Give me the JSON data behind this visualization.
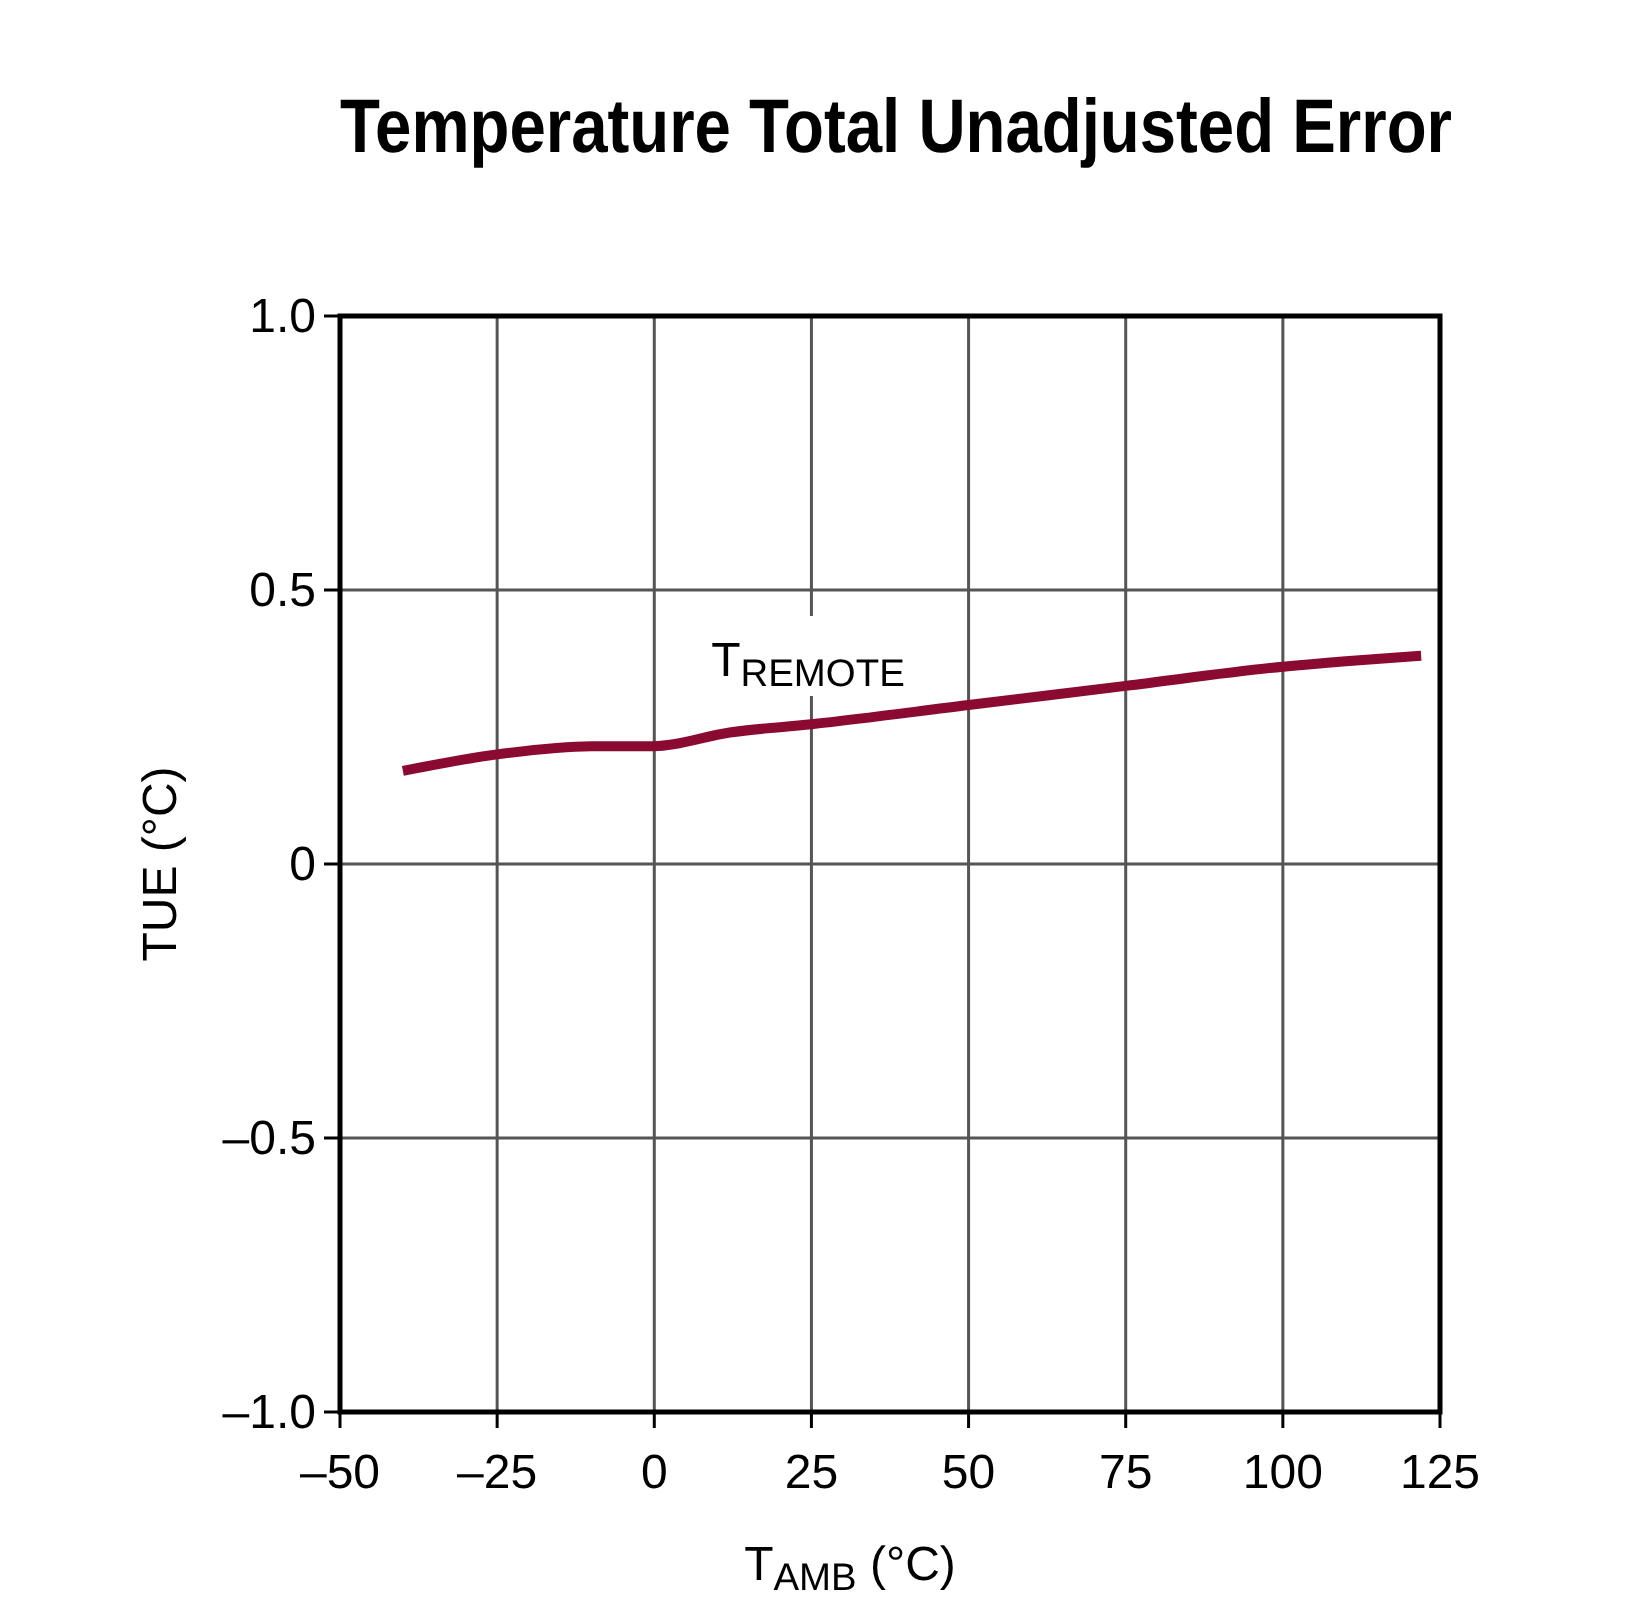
{
  "chart_data": {
    "type": "line",
    "title": "Temperature Total Unadjusted Error",
    "xlabel": "T$_{AMB}$ (°C)",
    "ylabel": "TUE (°C)",
    "series": [
      {
        "color": "#8b0a32",
        "x": [
          -40,
          -25,
          -10,
          0,
          12,
          25,
          50,
          75,
          100,
          110,
          122
        ],
        "values": [
          0.17,
          0.2,
          0.215,
          0.215,
          0.24,
          0.255,
          0.29,
          0.325,
          0.36,
          0.37,
          0.38
        ]
      }
    ],
    "annotations": [
      "T$_{REMOTE}$"
    ],
    "xlim": [
      -50,
      125
    ],
    "ylim": [
      -1,
      1
    ],
    "xticks": [
      {
        "value": -50,
        "label": "–50"
      },
      {
        "value": -25,
        "label": "–25"
      },
      0,
      25,
      50,
      75,
      100,
      125
    ],
    "yticks": [
      {
        "value": -1,
        "label": "–1.0"
      },
      {
        "value": -0.5,
        "label": "–0.5"
      },
      0,
      0.5,
      {
        "value": 1,
        "label": "1.0"
      }
    ],
    "grid": true,
    "marker": "none",
    "line_style": "solid"
  }
}
